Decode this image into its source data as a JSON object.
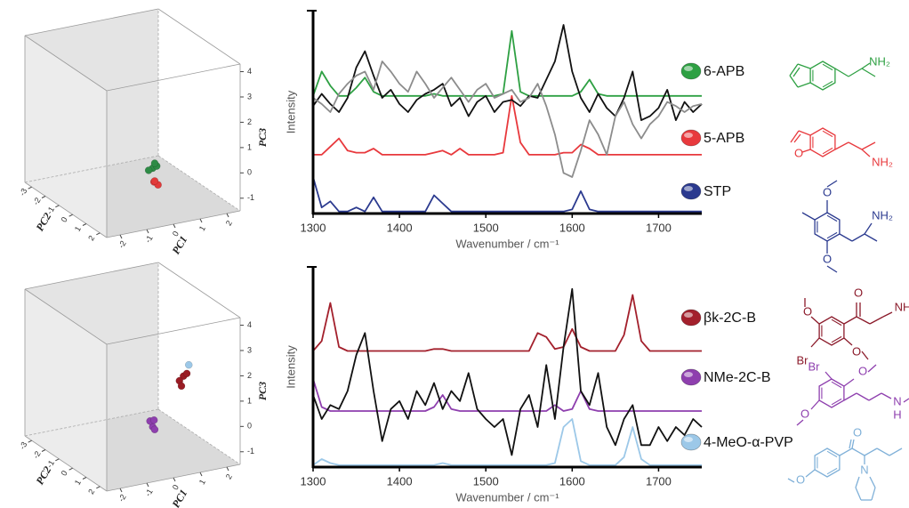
{
  "chart_data": [
    {
      "type": "scatter3d",
      "xlabel": "PC1",
      "ylabel": "PC2",
      "zlabel": "PC3",
      "xlim": [
        -2.5,
        2.5
      ],
      "ylim": [
        -3.5,
        2.5
      ],
      "zlim": [
        -1.5,
        4.3
      ],
      "xticks": [
        -2,
        -1,
        0,
        1,
        2
      ],
      "yticks": [
        -3,
        -2,
        -1,
        0,
        1,
        2
      ],
      "zticks": [
        4,
        3,
        2,
        1,
        0,
        -1
      ],
      "series": [
        {
          "color": "#2e8b46",
          "x": [
            0.5,
            0.6,
            0.4,
            0.55
          ],
          "y": [
            0,
            0.1,
            -0.1,
            0.05
          ],
          "z": [
            -0.3,
            -0.2,
            -0.4,
            -0.1
          ]
        },
        {
          "color": "#e23a3a",
          "x": [
            0.6,
            0.7,
            0.55
          ],
          "y": [
            -0.1,
            0,
            0.05
          ],
          "z": [
            -0.9,
            -1.0,
            -0.8
          ]
        }
      ]
    },
    {
      "type": "line",
      "xlabel": "Wavenumber / cm⁻¹",
      "ylabel": "Intensity",
      "x": [
        1300,
        1310,
        1320,
        1330,
        1340,
        1350,
        1360,
        1370,
        1380,
        1390,
        1400,
        1410,
        1420,
        1430,
        1440,
        1450,
        1460,
        1470,
        1480,
        1490,
        1500,
        1510,
        1520,
        1530,
        1540,
        1550,
        1560,
        1570,
        1580,
        1590,
        1600,
        1610,
        1620,
        1630,
        1640,
        1650,
        1660,
        1670,
        1680,
        1690,
        1700,
        1710,
        1720,
        1730,
        1740,
        1750
      ],
      "xlim": [
        1300,
        1750
      ],
      "xticks": [
        1300,
        1400,
        1500,
        1600,
        1700
      ],
      "ylim": [
        0,
        10
      ],
      "series": [
        {
          "name": "6-APB",
          "color": "#2ea043",
          "values": [
            5.8,
            7.0,
            6.3,
            5.8,
            5.8,
            6.2,
            6.7,
            6.0,
            5.8,
            5.8,
            5.8,
            5.8,
            5.8,
            5.8,
            5.9,
            5.8,
            5.8,
            5.8,
            5.8,
            5.8,
            5.8,
            5.8,
            5.9,
            9.0,
            6.0,
            5.8,
            5.8,
            5.8,
            5.8,
            5.8,
            5.8,
            6.0,
            6.6,
            5.9,
            5.8,
            5.8,
            5.8,
            5.8,
            5.8,
            5.8,
            5.8,
            5.8,
            5.8,
            5.8,
            5.8,
            5.8
          ]
        },
        {
          "name": "5-APB",
          "color": "#e8393d",
          "values": [
            2.9,
            2.9,
            3.3,
            3.7,
            3.1,
            3.0,
            3.0,
            3.2,
            2.9,
            2.9,
            2.9,
            2.9,
            2.9,
            2.9,
            3.0,
            3.1,
            2.9,
            3.2,
            2.9,
            2.9,
            2.9,
            2.9,
            3.0,
            5.8,
            3.5,
            2.9,
            2.9,
            2.9,
            2.9,
            3.0,
            3.0,
            3.4,
            3.2,
            2.9,
            2.9,
            2.9,
            2.9,
            2.9,
            2.9,
            2.9,
            2.9,
            2.9,
            2.9,
            2.9,
            2.9,
            2.9
          ]
        },
        {
          "name": "STP",
          "color": "#2b3a8f",
          "values": [
            1.8,
            0.3,
            0.6,
            0.1,
            0.1,
            0.3,
            0.1,
            0.8,
            0.1,
            0.1,
            0.1,
            0.1,
            0.1,
            0.1,
            0.9,
            0.5,
            0.1,
            0.1,
            0.1,
            0.1,
            0.1,
            0.1,
            0.1,
            0.1,
            0.1,
            0.1,
            0.1,
            0.1,
            0.1,
            0.1,
            0.2,
            1.1,
            0.2,
            0.1,
            0.1,
            0.1,
            0.1,
            0.1,
            0.1,
            0.1,
            0.1,
            0.1,
            0.1,
            0.1,
            0.1,
            0.1
          ]
        },
        {
          "color": "#111111",
          "values": [
            5.3,
            5.9,
            5.4,
            5.0,
            5.7,
            7.2,
            8.0,
            6.8,
            5.7,
            6.1,
            5.4,
            5.0,
            5.6,
            5.9,
            6.1,
            6.4,
            5.3,
            5.7,
            4.8,
            5.5,
            5.8,
            5.0,
            5.5,
            5.6,
            5.3,
            5.8,
            5.7,
            6.6,
            7.5,
            9.3,
            7.0,
            5.7,
            5.0,
            5.9,
            5.2,
            4.8,
            5.7,
            7.0,
            4.6,
            4.8,
            5.2,
            6.1,
            4.6,
            5.5,
            5.0,
            5.4
          ]
        },
        {
          "color": "#8c8c8c",
          "values": [
            5.7,
            5.4,
            5.0,
            5.9,
            6.4,
            6.8,
            7.0,
            6.1,
            7.5,
            7.0,
            6.4,
            6.0,
            7.0,
            6.4,
            5.7,
            6.2,
            6.7,
            6.1,
            5.5,
            6.1,
            6.4,
            5.7,
            5.9,
            6.1,
            5.5,
            5.7,
            6.4,
            5.3,
            3.9,
            2.0,
            1.8,
            3.1,
            4.6,
            3.9,
            2.9,
            4.8,
            5.5,
            4.4,
            3.7,
            4.4,
            4.8,
            5.5,
            5.3,
            5.0,
            5.3,
            5.4
          ]
        }
      ]
    },
    {
      "type": "scatter3d",
      "xlabel": "PC1",
      "ylabel": "PC2",
      "zlabel": "PC3",
      "xlim": [
        -2.5,
        2.5
      ],
      "ylim": [
        -3.5,
        2.5
      ],
      "zlim": [
        -1.5,
        4.3
      ],
      "xticks": [
        -2,
        -1,
        0,
        1,
        2
      ],
      "yticks": [
        -3,
        -2,
        -1,
        0,
        1,
        2
      ],
      "zticks": [
        4,
        3,
        2,
        1,
        0,
        -1
      ],
      "series": [
        {
          "color": "#9a1c24",
          "x": [
            1.5,
            1.4,
            1.6,
            1.45
          ],
          "y": [
            0.3,
            0.2,
            0.35,
            0.25
          ],
          "z": [
            1.4,
            1.2,
            1.5,
            1.0
          ]
        },
        {
          "color": "#8e3fae",
          "x": [
            0.5,
            0.45,
            0.55,
            0.5
          ],
          "y": [
            0,
            -0.1,
            0.05,
            0.1
          ],
          "z": [
            -0.5,
            -0.3,
            -0.6,
            -0.2
          ]
        },
        {
          "color": "#9cc8e8",
          "x": [
            1.7
          ],
          "y": [
            0.3
          ],
          "z": [
            1.8
          ]
        }
      ]
    },
    {
      "type": "line",
      "xlabel": "Wavenumber / cm⁻¹",
      "ylabel": "Intensity",
      "x": [
        1300,
        1310,
        1320,
        1330,
        1340,
        1350,
        1360,
        1370,
        1380,
        1390,
        1400,
        1410,
        1420,
        1430,
        1440,
        1450,
        1460,
        1470,
        1480,
        1490,
        1500,
        1510,
        1520,
        1530,
        1540,
        1550,
        1560,
        1570,
        1580,
        1590,
        1600,
        1610,
        1620,
        1630,
        1640,
        1650,
        1660,
        1670,
        1680,
        1690,
        1700,
        1710,
        1720,
        1730,
        1740,
        1750
      ],
      "xlim": [
        1300,
        1750
      ],
      "xticks": [
        1300,
        1400,
        1500,
        1600,
        1700
      ],
      "ylim": [
        0,
        10
      ],
      "series": [
        {
          "name": "βk-2C-B",
          "color": "#a3202c",
          "values": [
            5.8,
            6.3,
            8.2,
            6.0,
            5.8,
            5.8,
            5.8,
            5.8,
            5.8,
            5.8,
            5.8,
            5.8,
            5.8,
            5.8,
            5.9,
            5.9,
            5.8,
            5.8,
            5.8,
            5.8,
            5.8,
            5.8,
            5.8,
            5.8,
            5.8,
            5.8,
            6.7,
            6.5,
            5.9,
            6.0,
            6.9,
            6.0,
            5.8,
            5.8,
            5.8,
            5.8,
            6.6,
            8.6,
            6.3,
            5.8,
            5.8,
            5.8,
            5.8,
            5.8,
            5.8,
            5.8
          ]
        },
        {
          "name": "NMe-2C-B",
          "color": "#8e3fae",
          "values": [
            4.4,
            3.0,
            2.8,
            2.8,
            2.8,
            2.8,
            2.8,
            2.8,
            2.8,
            2.8,
            2.8,
            2.8,
            2.8,
            2.8,
            3.0,
            3.6,
            2.9,
            2.8,
            2.8,
            2.8,
            2.8,
            2.8,
            2.8,
            2.8,
            2.8,
            2.8,
            2.8,
            2.8,
            3.1,
            2.8,
            2.9,
            3.8,
            2.9,
            2.8,
            2.8,
            2.8,
            2.8,
            2.8,
            2.8,
            2.8,
            2.8,
            2.8,
            2.8,
            2.8,
            2.8,
            2.8
          ]
        },
        {
          "name": "4-MeO-α-PVP",
          "color": "#9cc8e8",
          "values": [
            0.1,
            0.4,
            0.2,
            0.1,
            0.1,
            0.1,
            0.1,
            0.1,
            0.1,
            0.1,
            0.1,
            0.1,
            0.1,
            0.1,
            0.1,
            0.2,
            0.1,
            0.1,
            0.1,
            0.1,
            0.1,
            0.1,
            0.1,
            0.1,
            0.1,
            0.1,
            0.1,
            0.1,
            0.2,
            2.0,
            2.4,
            0.3,
            0.1,
            0.1,
            0.1,
            0.1,
            0.5,
            2.0,
            0.4,
            0.1,
            0.1,
            0.1,
            0.1,
            0.1,
            0.1,
            0.1
          ]
        },
        {
          "color": "#111111",
          "values": [
            3.6,
            2.4,
            3.1,
            2.9,
            3.8,
            5.6,
            6.7,
            3.8,
            1.3,
            2.9,
            3.3,
            2.4,
            3.8,
            3.1,
            4.2,
            2.9,
            3.8,
            3.3,
            4.7,
            2.9,
            2.4,
            2.0,
            2.4,
            0.6,
            2.9,
            3.6,
            2.0,
            5.1,
            2.4,
            6.0,
            8.9,
            3.8,
            3.1,
            4.7,
            2.0,
            1.1,
            2.4,
            3.1,
            1.1,
            1.1,
            2.0,
            1.3,
            2.0,
            1.6,
            2.4,
            2.0
          ]
        }
      ]
    }
  ],
  "structures": [
    {
      "color": "#2ea043",
      "labels": [
        "NH₂"
      ]
    },
    {
      "color": "#e8393d",
      "labels": [
        "O",
        "NH₂"
      ]
    },
    {
      "color": "#2b3a8f",
      "labels": [
        "O",
        "O",
        "NH₂"
      ]
    },
    {
      "color": "#8b1a2a",
      "labels": [
        "O",
        "O",
        "NH",
        "Br",
        "O"
      ]
    },
    {
      "color": "#8e3fae",
      "labels": [
        "Br",
        "O",
        "O",
        "N",
        "H"
      ]
    },
    {
      "color": "#7fb0d8",
      "labels": [
        "O",
        "O",
        "N"
      ]
    }
  ]
}
